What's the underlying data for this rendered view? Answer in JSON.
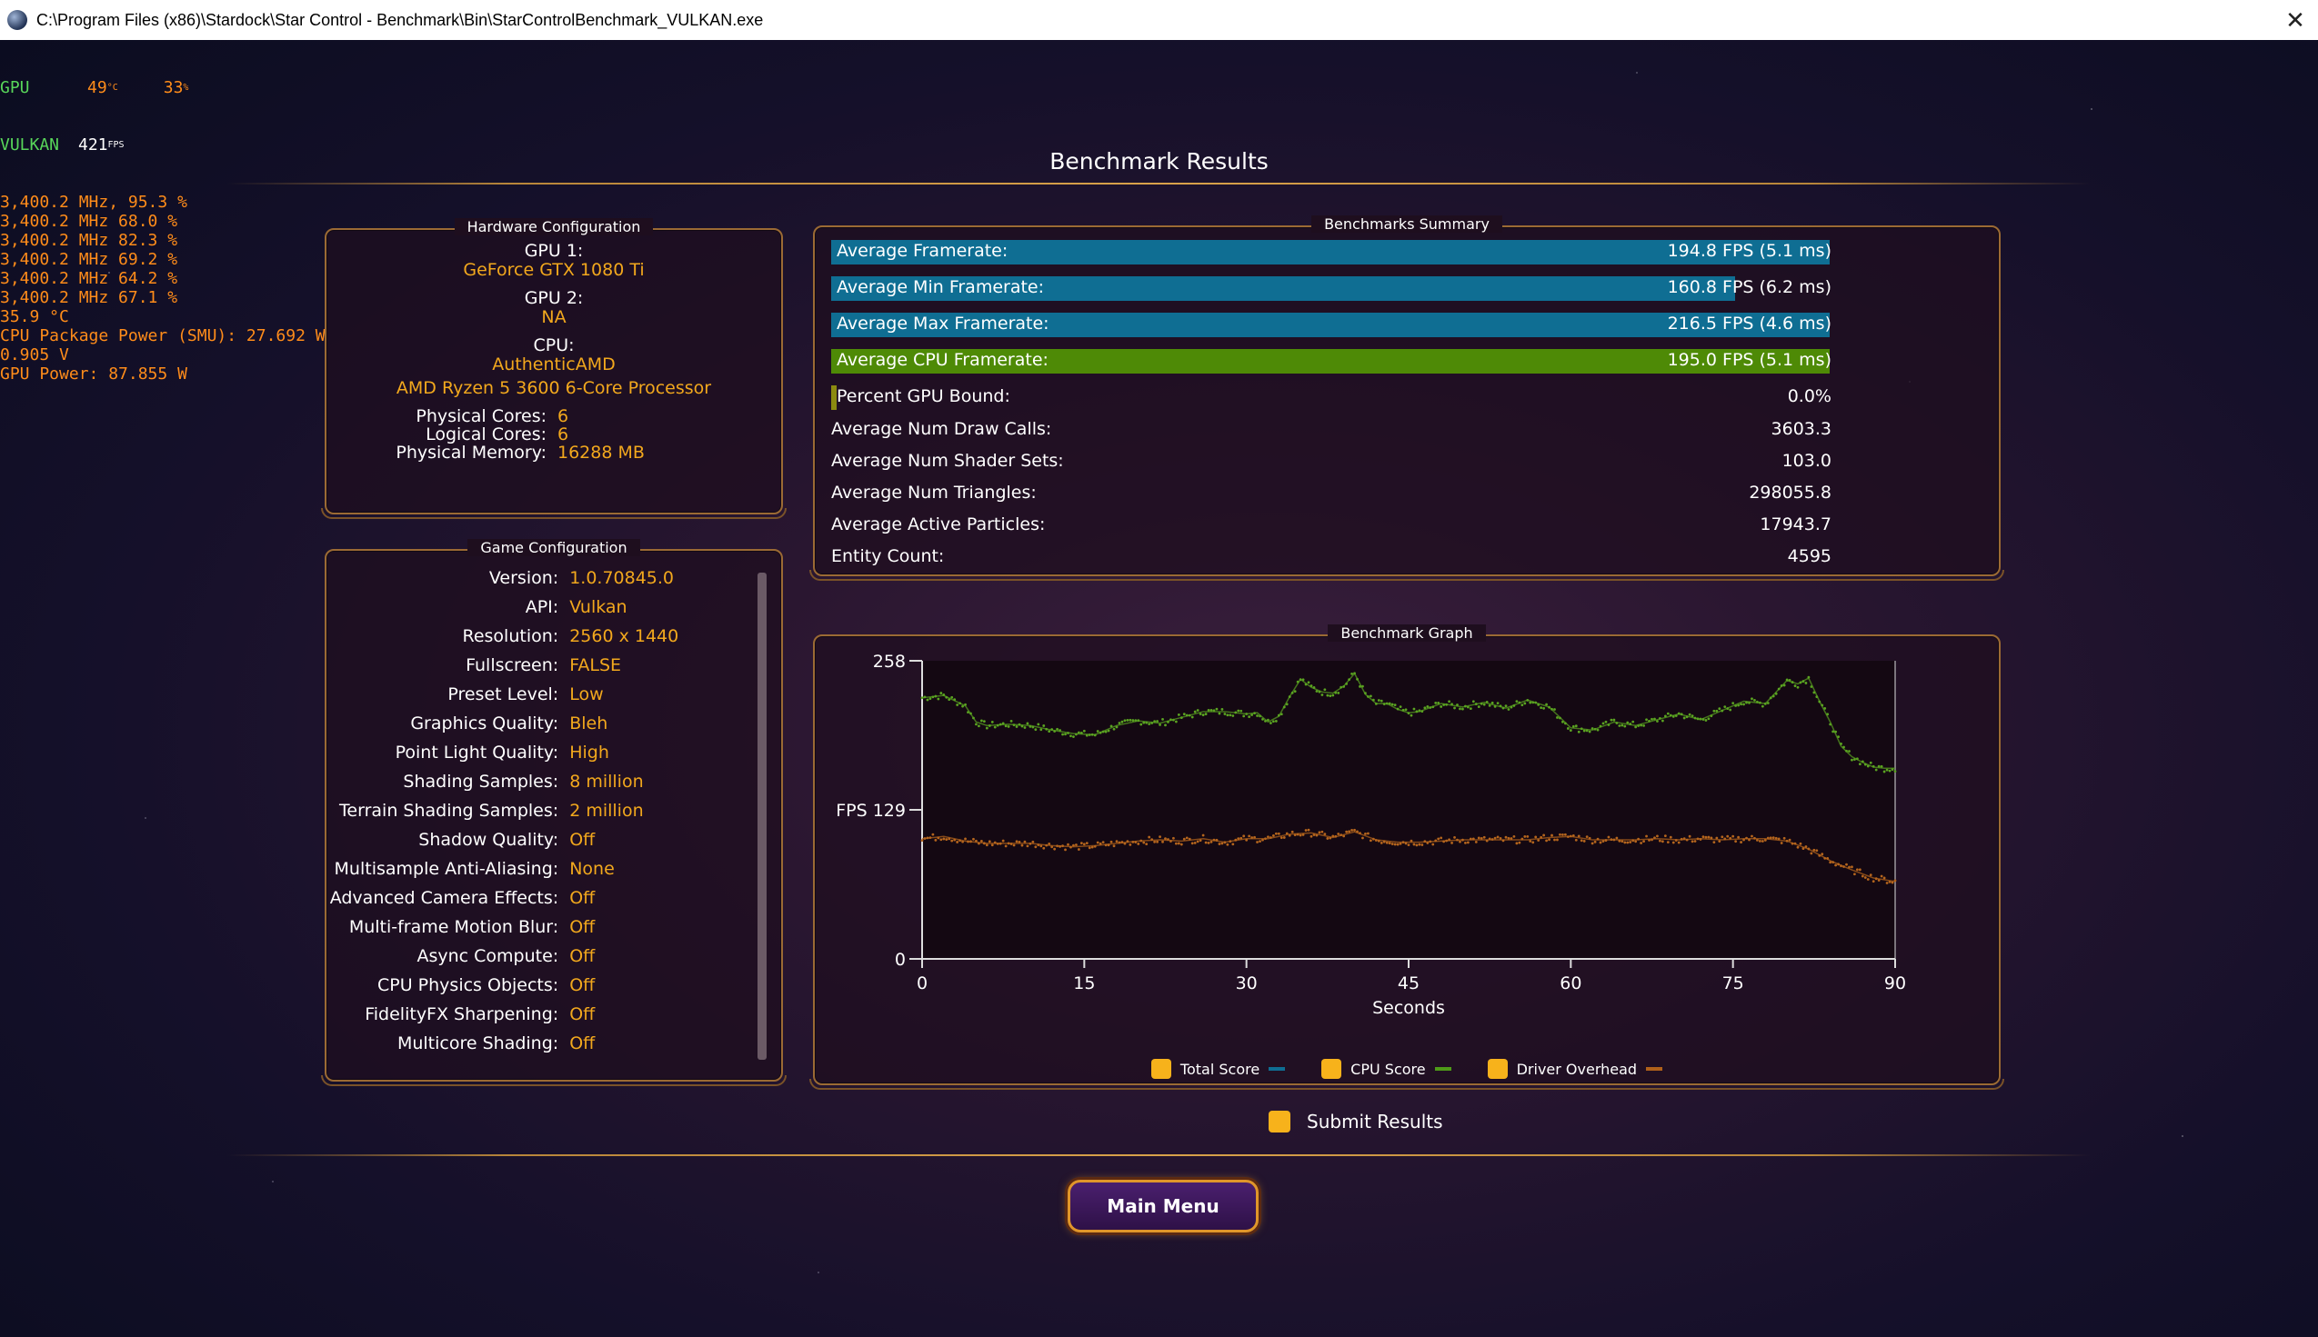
{
  "window": {
    "title": "C:\\Program Files (x86)\\Stardock\\Star Control - Benchmark\\Bin\\StarControlBenchmark_VULKAN.exe",
    "close_glyph": "✕"
  },
  "overlay": {
    "gpu_label": "GPU",
    "gpu_temp": "49",
    "gpu_temp_unit": "°C",
    "gpu_load": "33",
    "gpu_load_unit": "%",
    "api_label": "VULKAN",
    "fps": "421",
    "fps_unit": "FPS",
    "core_lines": [
      "3,400.2 MHz, 95.3 %",
      "3,400.2 MHz 68.0 %",
      "3,400.2 MHz 82.3 %",
      "3,400.2 MHz 69.2 %",
      "3,400.2 MHz 64.2 %",
      "3,400.2 MHz 67.1 %",
      "35.9 °C",
      "CPU Package Power (SMU): 27.692 W",
      "0.905 V",
      "GPU Power: 87.855 W"
    ]
  },
  "page_title": "Benchmark Results",
  "hardware": {
    "title": "Hardware Configuration",
    "gpu1_label": "GPU 1:",
    "gpu1_value": "GeForce GTX 1080 Ti",
    "gpu2_label": "GPU 2:",
    "gpu2_value": "NA",
    "cpu_label": "CPU:",
    "cpu_vendor": "AuthenticAMD",
    "cpu_model": "AMD Ryzen 5 3600 6-Core Processor",
    "rows": [
      {
        "label": "Physical Cores:",
        "value": "6"
      },
      {
        "label": "Logical Cores:",
        "value": "6"
      },
      {
        "label": "Physical Memory:",
        "value": "16288  MB"
      }
    ]
  },
  "game": {
    "title": "Game Configuration",
    "rows": [
      {
        "label": "Version:",
        "value": "1.0.70845.0"
      },
      {
        "label": "API:",
        "value": "Vulkan"
      },
      {
        "label": "Resolution:",
        "value": "2560 x 1440"
      },
      {
        "label": "Fullscreen:",
        "value": "FALSE"
      },
      {
        "label": "Preset Level:",
        "value": "Low"
      },
      {
        "label": "Graphics Quality:",
        "value": "Bleh"
      },
      {
        "label": "Point Light Quality:",
        "value": "High"
      },
      {
        "label": "Shading Samples:",
        "value": "8 million"
      },
      {
        "label": "Terrain Shading Samples:",
        "value": "2 million"
      },
      {
        "label": "Shadow Quality:",
        "value": "Off"
      },
      {
        "label": "Multisample Anti-Aliasing:",
        "value": "None"
      },
      {
        "label": "Advanced Camera Effects:",
        "value": "Off"
      },
      {
        "label": "Multi-frame Motion Blur:",
        "value": "Off"
      },
      {
        "label": "Async Compute:",
        "value": "Off"
      },
      {
        "label": "CPU Physics Objects:",
        "value": "Off"
      },
      {
        "label": "FidelityFX Sharpening:",
        "value": "Off"
      },
      {
        "label": "Multicore Shading:",
        "value": "Off"
      }
    ]
  },
  "summary": {
    "title": "Benchmarks Summary",
    "bars": [
      {
        "label": "Average Framerate:",
        "value": "194.8 FPS (5.1 ms)",
        "fill": 1.0,
        "color": "#0f6e93"
      },
      {
        "label": "Average Min Framerate:",
        "value": "160.8 FPS (6.2 ms)",
        "fill": 0.905,
        "color": "#0f6e93"
      },
      {
        "label": "Average Max Framerate:",
        "value": "216.5 FPS (4.6 ms)",
        "fill": 1.0,
        "color": "#0f6e93"
      },
      {
        "label": "Average CPU Framerate:",
        "value": "195.0 FPS (5.1 ms)",
        "fill": 1.0,
        "color": "#4e8a06"
      },
      {
        "label": "Percent GPU Bound:",
        "value": "0.0%",
        "fill": 0.0,
        "color": "#8c8a10"
      }
    ],
    "rows": [
      {
        "label": "Average Num Draw Calls:",
        "value": "3603.3"
      },
      {
        "label": "Average Num Shader Sets:",
        "value": "103.0"
      },
      {
        "label": "Average Num Triangles:",
        "value": "298055.8"
      },
      {
        "label": "Average Active Particles:",
        "value": "17943.7"
      },
      {
        "label": "Entity Count:",
        "value": "4595"
      }
    ]
  },
  "graph": {
    "title": "Benchmark Graph"
  },
  "chart_data": {
    "type": "scatter",
    "title": "",
    "xlabel": "Seconds",
    "ylabel": "FPS",
    "xlim": [
      0,
      90
    ],
    "ylim": [
      0,
      258
    ],
    "x_ticks": [
      0,
      15,
      30,
      45,
      60,
      75,
      90
    ],
    "y_ticks": [
      {
        "value": 258,
        "label": "258"
      },
      {
        "value": 129,
        "label": "FPS 129"
      },
      {
        "value": 0,
        "label": "0"
      }
    ],
    "legend": {
      "placement": "bottom",
      "items": [
        {
          "name": "Total Score",
          "color": "#0f6e93"
        },
        {
          "name": "CPU Score",
          "color": "#4e9a18"
        },
        {
          "name": "Driver Overhead",
          "color": "#b0611a"
        }
      ]
    },
    "series": [
      {
        "name": "CPU Score",
        "color": "#5aa321",
        "x": [
          0,
          2,
          4,
          5,
          6,
          8,
          10,
          12,
          14,
          16,
          18,
          20,
          22,
          24,
          26,
          28,
          30,
          31,
          32,
          33,
          34,
          35,
          36,
          37,
          38,
          39,
          40,
          41,
          42,
          43,
          44,
          45,
          46,
          48,
          50,
          52,
          54,
          56,
          58,
          60,
          62,
          64,
          66,
          68,
          70,
          72,
          74,
          76,
          78,
          80,
          81,
          82,
          83,
          84,
          85,
          86,
          87,
          88,
          89,
          90
        ],
        "y": [
          226,
          228,
          219,
          205,
          202,
          203,
          202,
          198,
          195,
          194,
          202,
          206,
          204,
          209,
          214,
          214,
          212,
          213,
          205,
          210,
          227,
          242,
          235,
          231,
          230,
          236,
          247,
          229,
          221,
          221,
          216,
          213,
          214,
          221,
          218,
          222,
          217,
          224,
          218,
          200,
          198,
          205,
          202,
          207,
          212,
          207,
          215,
          223,
          221,
          241,
          238,
          243,
          223,
          205,
          184,
          175,
          170,
          166,
          165,
          165
        ]
      },
      {
        "name": "Driver Overhead",
        "color": "#b5651d",
        "x": [
          0,
          2,
          4,
          6,
          8,
          10,
          12,
          14,
          16,
          18,
          20,
          22,
          24,
          26,
          28,
          30,
          32,
          34,
          36,
          38,
          40,
          42,
          44,
          46,
          48,
          50,
          52,
          54,
          56,
          58,
          60,
          62,
          64,
          66,
          68,
          70,
          72,
          74,
          76,
          78,
          80,
          82,
          84,
          86,
          88,
          90
        ],
        "y": [
          104,
          106,
          102,
          100,
          100,
          100,
          98,
          97,
          98,
          100,
          102,
          103,
          102,
          104,
          101,
          104,
          104,
          108,
          109,
          105,
          110,
          103,
          101,
          101,
          102,
          103,
          103,
          103,
          103,
          105,
          106,
          103,
          103,
          103,
          104,
          103,
          104,
          103,
          104,
          104,
          102,
          95,
          85,
          77,
          70,
          67
        ]
      }
    ]
  },
  "submit": {
    "label": "Submit Results"
  },
  "main_menu": {
    "label": "Main Menu"
  }
}
